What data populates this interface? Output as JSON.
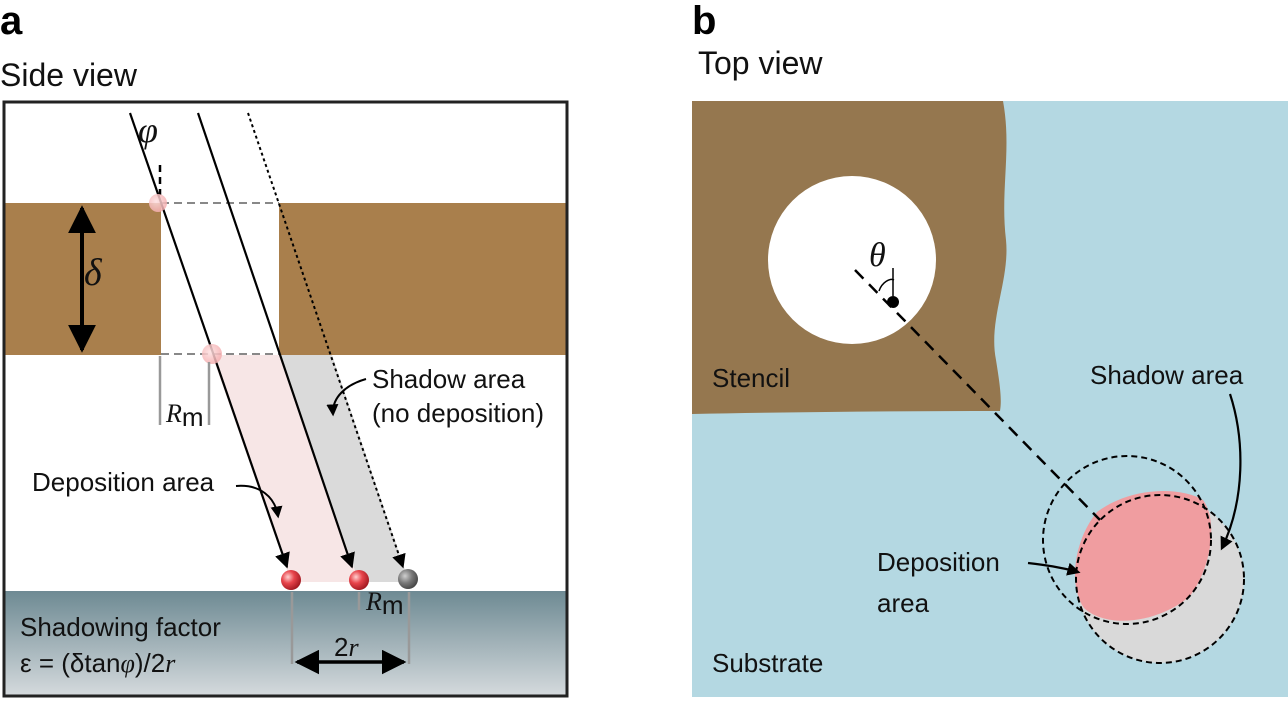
{
  "panel_a": {
    "letter": "a",
    "title": "Side view",
    "phi_symbol": "φ",
    "delta_symbol": "δ",
    "rm_main": "R",
    "rm_sub": "m",
    "shadow_label_line1": "Shadow area",
    "shadow_label_line2": "(no deposition)",
    "deposition_label": "Deposition area",
    "factor_line1": "Shadowing factor",
    "factor_line2_prefix": "ε = (δtan",
    "factor_line2_phi": "φ",
    "factor_line2_mid": ")/2",
    "factor_line2_r": "r",
    "two_r_prefix": "2",
    "two_r_var": "r",
    "colors": {
      "stencil": "#a97f4c",
      "deposition": "#f7e6e6",
      "shadow": "#dadada",
      "substrate_top": "#6e8a93",
      "substrate_bottom": "#d6dbde",
      "particle_red": "#e8454c",
      "particle_grey": "#777777"
    }
  },
  "panel_b": {
    "letter": "b",
    "title": "Top view",
    "theta_symbol": "θ",
    "stencil_label": "Stencil",
    "shadow_label": "Shadow area",
    "deposition_label_line1": "Deposition",
    "deposition_label_line2": "area",
    "substrate_label": "Substrate",
    "colors": {
      "substrate": "#b4d8e2",
      "stencil": "#95774f",
      "deposition": "#f09da0",
      "shadow": "#d9d9d9"
    }
  }
}
